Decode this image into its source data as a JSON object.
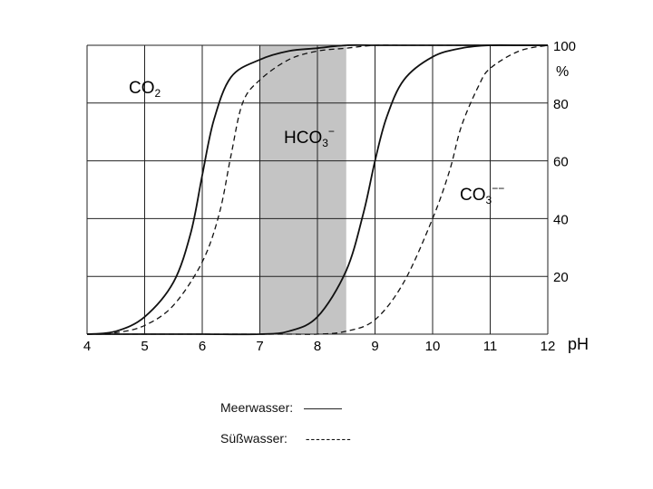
{
  "chart_data": {
    "type": "line",
    "xlabel": "pH",
    "ylabel": "%",
    "xlim": [
      4,
      12
    ],
    "ylim": [
      0,
      100
    ],
    "x_ticks": [
      4,
      5,
      6,
      7,
      8,
      9,
      10,
      11,
      12
    ],
    "y_ticks": [
      20,
      40,
      60,
      80,
      100
    ],
    "shaded_region": [
      7,
      8.5
    ],
    "grid": true,
    "species": {
      "co2": {
        "base": "CO",
        "sub": "2",
        "sup": ""
      },
      "hco3": {
        "base": "HCO",
        "sub": "3",
        "sup": "−"
      },
      "co3": {
        "base": "CO",
        "sub": "3",
        "sup": "−−"
      }
    },
    "series": [
      {
        "name": "Meerwasser",
        "style": "solid",
        "x": [
          4,
          4.5,
          5,
          5.5,
          5.8,
          6,
          6.2,
          6.5,
          7,
          7.5,
          8,
          8.5,
          9,
          9.5,
          10,
          10.5,
          11,
          11.5,
          12
        ],
        "y": [
          0,
          1,
          6,
          18,
          35,
          55,
          74,
          89,
          95,
          98,
          99,
          100,
          100,
          100,
          100,
          100,
          100,
          100,
          100
        ]
      },
      {
        "name": "Süßwasser",
        "style": "dashed",
        "x": [
          4,
          4.5,
          5,
          5.5,
          6,
          6.3,
          6.5,
          6.7,
          7,
          7.5,
          8,
          8.5,
          9,
          9.5,
          10,
          10.5,
          11,
          11.5,
          12
        ],
        "y": [
          0,
          0.5,
          3,
          10,
          25,
          42,
          62,
          80,
          88,
          95,
          98,
          99,
          100,
          100,
          100,
          100,
          100,
          100,
          100
        ]
      },
      {
        "name": "Meerwasser",
        "style": "solid",
        "x": [
          4,
          5,
          6,
          7,
          7.5,
          8,
          8.5,
          8.8,
          9,
          9.2,
          9.5,
          10,
          10.5,
          11,
          11.5,
          12
        ],
        "y": [
          0,
          0,
          0,
          0,
          1,
          6,
          22,
          42,
          60,
          75,
          88,
          96,
          99,
          100,
          100,
          100
        ]
      },
      {
        "name": "Süßwasser",
        "style": "dashed",
        "x": [
          4,
          5,
          6,
          7,
          7.5,
          8,
          8.5,
          9,
          9.5,
          10,
          10.3,
          10.5,
          10.8,
          11,
          11.5,
          12
        ],
        "y": [
          0,
          0,
          0,
          0,
          0,
          0,
          1,
          5,
          18,
          40,
          57,
          72,
          86,
          92,
          98,
          100
        ]
      }
    ]
  },
  "legend": {
    "meerwasser_label": "Meerwasser:",
    "meerwasser_symbol": "———",
    "suesswasser_label": "Süßwasser:",
    "suesswasser_symbol": "---------"
  }
}
